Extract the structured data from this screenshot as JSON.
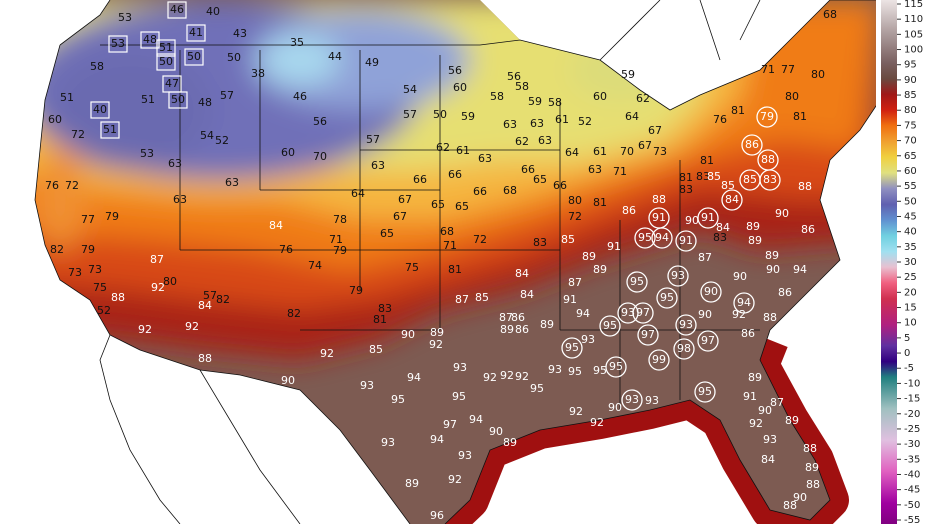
{
  "map": {
    "stations": [
      53,
      46,
      40,
      43,
      35,
      44,
      49,
      41,
      53,
      48,
      51,
      50,
      50,
      50,
      58,
      47,
      50,
      51,
      51,
      40,
      51,
      60,
      72,
      48,
      57,
      46,
      38,
      56,
      54,
      52,
      53,
      63,
      63,
      63,
      60,
      70,
      57,
      56,
      60,
      58,
      56,
      58,
      59,
      58,
      59,
      60,
      62,
      54,
      57,
      50,
      59,
      63,
      63,
      61,
      52,
      64,
      62,
      61,
      63,
      62,
      63,
      64,
      61,
      70,
      67,
      67,
      73,
      63,
      66,
      66,
      66,
      68,
      66,
      65,
      66,
      63,
      71,
      64,
      67,
      65,
      65,
      67,
      68,
      72,
      71,
      65,
      76,
      72,
      77,
      82,
      79,
      73,
      73,
      75,
      88,
      52,
      92,
      92,
      80,
      57,
      82,
      84,
      92,
      88,
      79,
      87,
      84,
      76,
      78,
      71,
      79,
      74,
      75,
      81,
      82,
      79,
      83,
      81,
      92,
      85,
      90,
      93,
      94,
      95,
      93,
      95,
      92,
      92,
      92,
      95,
      93,
      95,
      95,
      94,
      97,
      94,
      93,
      90,
      89,
      93,
      89,
      92,
      96,
      92,
      92,
      90,
      93,
      93,
      90,
      89,
      92,
      87,
      85,
      89,
      87,
      86,
      86,
      89,
      84,
      84,
      87,
      91,
      94,
      89,
      89,
      91,
      83,
      85,
      95,
      93,
      95,
      93,
      97,
      97,
      99,
      93,
      98,
      97,
      95,
      95,
      95,
      93,
      90,
      94,
      90,
      90,
      92,
      95,
      87,
      72,
      80,
      81,
      86,
      88,
      91,
      95,
      94,
      91,
      90,
      91,
      84,
      83,
      81,
      83,
      81,
      83,
      85,
      84,
      85,
      86,
      88,
      85,
      83,
      79,
      81,
      76,
      80,
      71,
      77,
      81,
      80,
      68,
      88,
      90,
      86,
      89,
      89,
      90,
      89,
      94,
      86,
      88,
      86,
      89,
      91,
      90,
      87,
      92,
      93,
      89,
      88,
      89,
      88,
      90,
      88,
      84
    ],
    "colorbar": {
      "ticks": [
        115,
        110,
        105,
        100,
        95,
        90,
        85,
        80,
        75,
        70,
        65,
        60,
        55,
        50,
        45,
        40,
        35,
        30,
        25,
        20,
        15,
        10,
        5,
        0,
        -5,
        -10,
        -15,
        -20,
        -25,
        -30,
        -35,
        -40,
        -45,
        -50,
        -55
      ]
    }
  }
}
